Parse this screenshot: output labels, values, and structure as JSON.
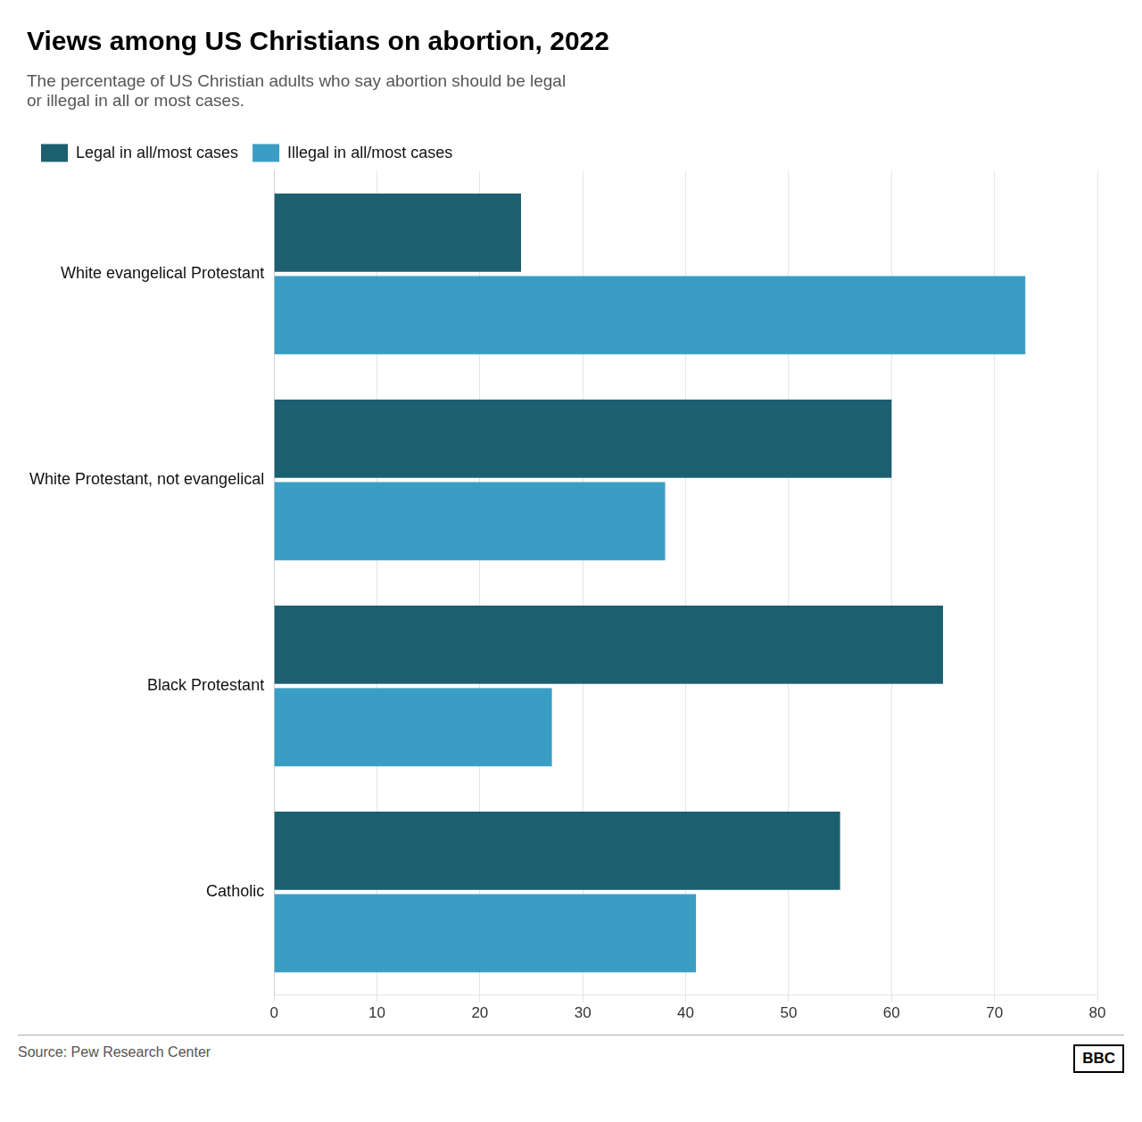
{
  "chart_data": {
    "type": "bar",
    "orientation": "horizontal",
    "title": "Views among US Christians on abortion, 2022",
    "subtitle": "The percentage of US Christian adults who say abortion should be legal\nor illegal in all or most cases.",
    "categories": [
      "White evangelical Protestant",
      "White Protestant, not evangelical",
      "Black Protestant",
      "Catholic"
    ],
    "series": [
      {
        "name": "Legal in all/most cases",
        "color": "#1c5f70",
        "values": [
          24,
          60,
          65,
          55
        ]
      },
      {
        "name": "Illegal in all/most cases",
        "color": "#3a9ec4",
        "values": [
          73,
          38,
          27,
          41
        ]
      }
    ],
    "xlim": [
      0,
      80
    ],
    "xticks": [
      0,
      10,
      20,
      30,
      40,
      50,
      60,
      70,
      80
    ],
    "grid": true,
    "legend": "top",
    "annotations": [
      "Source: Pew Research Center",
      "BBC"
    ]
  }
}
